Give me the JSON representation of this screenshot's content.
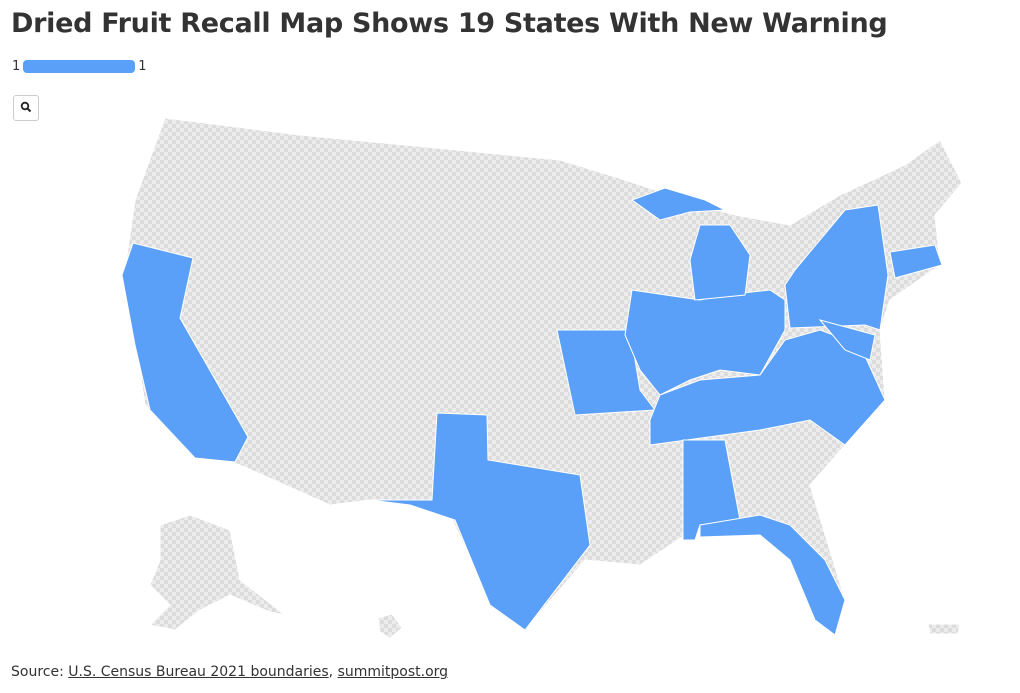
{
  "header": {
    "title": "Dried Fruit Recall Map Shows 19 States With New Warning"
  },
  "legend": {
    "min": 1,
    "max": 1,
    "color": "#5aa0f8"
  },
  "source": {
    "label": "Source:",
    "links": [
      "U.S. Census Bureau 2021 boundaries",
      "summitpost.org"
    ],
    "separator": ","
  }
}
